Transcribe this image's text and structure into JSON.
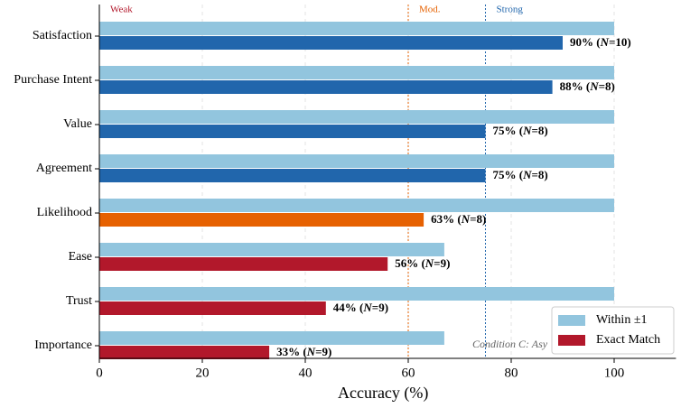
{
  "chart_data": {
    "type": "bar",
    "orientation": "horizontal",
    "xlabel": "Accuracy (%)",
    "categories": [
      "Satisfaction",
      "Purchase Intent",
      "Value",
      "Agreement",
      "Likelihood",
      "Ease",
      "Trust",
      "Importance"
    ],
    "series": [
      {
        "name": "Within ±1",
        "color": "#92c5de",
        "values": [
          100,
          100,
          100,
          100,
          100,
          67,
          100,
          67
        ]
      },
      {
        "name": "Exact Match",
        "color": "#b2182b",
        "colors": [
          "#2166ac",
          "#2166ac",
          "#2166ac",
          "#2166ac",
          "#e66101",
          "#b2182b",
          "#b2182b",
          "#b2182b"
        ],
        "values": [
          90,
          88,
          75,
          75,
          63,
          56,
          44,
          33
        ],
        "value_labels": [
          "90% (N=10)",
          "88% (N=8)",
          "75% (N=8)",
          "75% (N=8)",
          "63% (N=8)",
          "56% (N=9)",
          "44% (N=9)",
          "33% (N=9)"
        ]
      }
    ],
    "xlim": [
      0,
      112
    ],
    "xticks": [
      0,
      20,
      40,
      60,
      80,
      100
    ],
    "grid": true,
    "zones": [
      {
        "label": "Weak",
        "start": 0,
        "color": "#b2182b"
      },
      {
        "label": "Mod.",
        "start": 60,
        "color": "#e66101"
      },
      {
        "label": "Strong",
        "start": 75,
        "color": "#2166ac"
      }
    ],
    "annotation": "Condition C: Asy",
    "legend": "lower right"
  }
}
